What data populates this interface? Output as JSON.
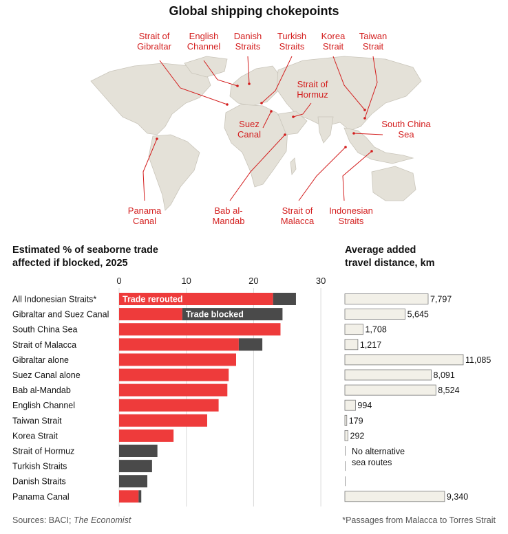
{
  "title": "Global shipping chokepoints",
  "map": {
    "locations": [
      {
        "id": "strait-of-gibraltar",
        "lines": [
          "Strait of",
          "Gibraltar"
        ]
      },
      {
        "id": "english-channel",
        "lines": [
          "English",
          "Channel"
        ]
      },
      {
        "id": "danish-straits",
        "lines": [
          "Danish",
          "Straits"
        ]
      },
      {
        "id": "turkish-straits",
        "lines": [
          "Turkish",
          "Straits"
        ]
      },
      {
        "id": "korea-strait",
        "lines": [
          "Korea",
          "Strait"
        ]
      },
      {
        "id": "taiwan-strait",
        "lines": [
          "Taiwan",
          "Strait"
        ]
      },
      {
        "id": "strait-of-hormuz",
        "lines": [
          "Strait of",
          "Hormuz"
        ]
      },
      {
        "id": "suez-canal",
        "lines": [
          "Suez",
          "Canal"
        ]
      },
      {
        "id": "south-china-sea",
        "lines": [
          "South China",
          "Sea"
        ]
      },
      {
        "id": "panama-canal",
        "lines": [
          "Panama",
          "Canal"
        ]
      },
      {
        "id": "bab-al-mandab",
        "lines": [
          "Bab al-",
          "Mandab"
        ]
      },
      {
        "id": "strait-of-malacca",
        "lines": [
          "Strait of",
          "Malacca"
        ]
      },
      {
        "id": "indonesian-straits",
        "lines": [
          "Indonesian",
          "Straits"
        ]
      }
    ]
  },
  "left_title": [
    "Estimated % of seaborne trade",
    "affected if blocked, 2025"
  ],
  "right_title": [
    "Average added",
    "travel distance, km"
  ],
  "no_alternative": [
    "No alternative",
    "sea routes"
  ],
  "sources_prefix": "Sources: BACI; ",
  "sources_italic": "The Economist",
  "footnote": "*Passages from Malacca to Torres Strait",
  "colors": {
    "rerouted": "#ee3b3b",
    "blocked": "#4a4a4a",
    "distance": "#f2f0e8",
    "label": "#d31d1d",
    "land": "#e4e1d8"
  },
  "chart_data": [
    {
      "type": "bar",
      "orientation": "horizontal",
      "stacked": true,
      "categories": [
        "All Indonesian Straits*",
        "Gibraltar and Suez Canal",
        "South China Sea",
        "Strait of Malacca",
        "Gibraltar alone",
        "Suez Canal alone",
        "Bab al-Mandab",
        "English Channel",
        "Taiwan Strait",
        "Korea Strait",
        "Strait of Hormuz",
        "Turkish Straits",
        "Danish Straits",
        "Panama Canal"
      ],
      "series": [
        {
          "name": "Trade rerouted",
          "values": [
            22.9,
            9.4,
            24.0,
            17.8,
            17.4,
            16.3,
            16.1,
            14.8,
            13.1,
            8.1,
            0,
            0,
            0,
            2.9
          ]
        },
        {
          "name": "Trade blocked",
          "values": [
            3.4,
            14.9,
            0,
            3.5,
            0,
            0,
            0,
            0,
            0,
            0,
            5.7,
            4.9,
            4.2,
            0.4
          ]
        }
      ],
      "ticks": [
        0,
        10,
        20,
        30
      ],
      "xlim": [
        0,
        30
      ]
    },
    {
      "type": "bar",
      "orientation": "horizontal",
      "categories": [
        "All Indonesian Straits*",
        "Gibraltar and Suez Canal",
        "South China Sea",
        "Strait of Malacca",
        "Gibraltar alone",
        "Suez Canal alone",
        "Bab al-Mandab",
        "English Channel",
        "Taiwan Strait",
        "Korea Strait",
        "Strait of Hormuz",
        "Turkish Straits",
        "Danish Straits",
        "Panama Canal"
      ],
      "values": [
        7797,
        5645,
        1708,
        1217,
        11085,
        8091,
        8524,
        994,
        179,
        292,
        null,
        null,
        null,
        9340
      ],
      "labels": [
        "7,797",
        "5,645",
        "1,708",
        "1,217",
        "11,085",
        "8,091",
        "8,524",
        "994",
        "179",
        "292",
        "",
        "",
        "",
        "9,340"
      ]
    }
  ]
}
